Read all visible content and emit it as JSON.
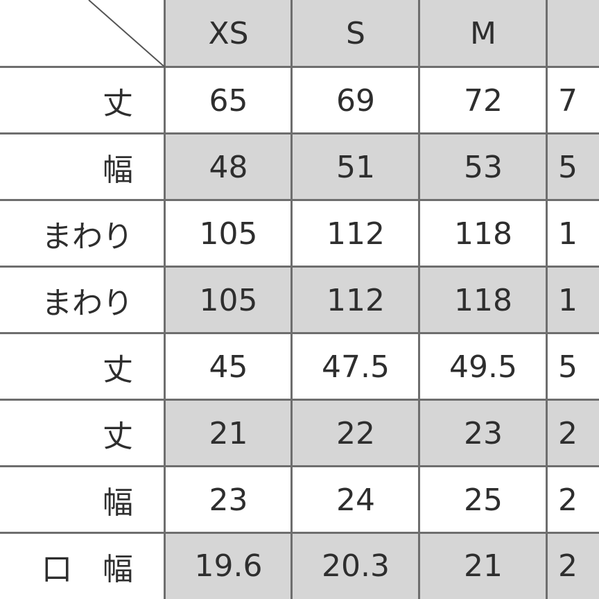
{
  "table": {
    "columns": [
      "XS",
      "S",
      "M",
      ""
    ],
    "rows": [
      {
        "label": "丈",
        "values": [
          "65",
          "69",
          "72",
          "7"
        ],
        "shaded": false
      },
      {
        "label": "幅",
        "values": [
          "48",
          "51",
          "53",
          "5"
        ],
        "shaded": true
      },
      {
        "label": "まわり",
        "values": [
          "105",
          "112",
          "118",
          "1"
        ],
        "shaded": false
      },
      {
        "label": "まわり",
        "values": [
          "105",
          "112",
          "118",
          "1"
        ],
        "shaded": true
      },
      {
        "label": "丈",
        "values": [
          "45",
          "47.5",
          "49.5",
          "5"
        ],
        "shaded": false
      },
      {
        "label": "丈",
        "values": [
          "21",
          "22",
          "23",
          "2"
        ],
        "shaded": true
      },
      {
        "label": "幅",
        "values": [
          "23",
          "24",
          "25",
          "2"
        ],
        "shaded": false
      },
      {
        "label": "口　幅",
        "values": [
          "19.6",
          "20.3",
          "21",
          "2"
        ],
        "shaded": true
      }
    ],
    "shade_color": "#d6d6d6",
    "border_color": "#6e6e6e"
  }
}
